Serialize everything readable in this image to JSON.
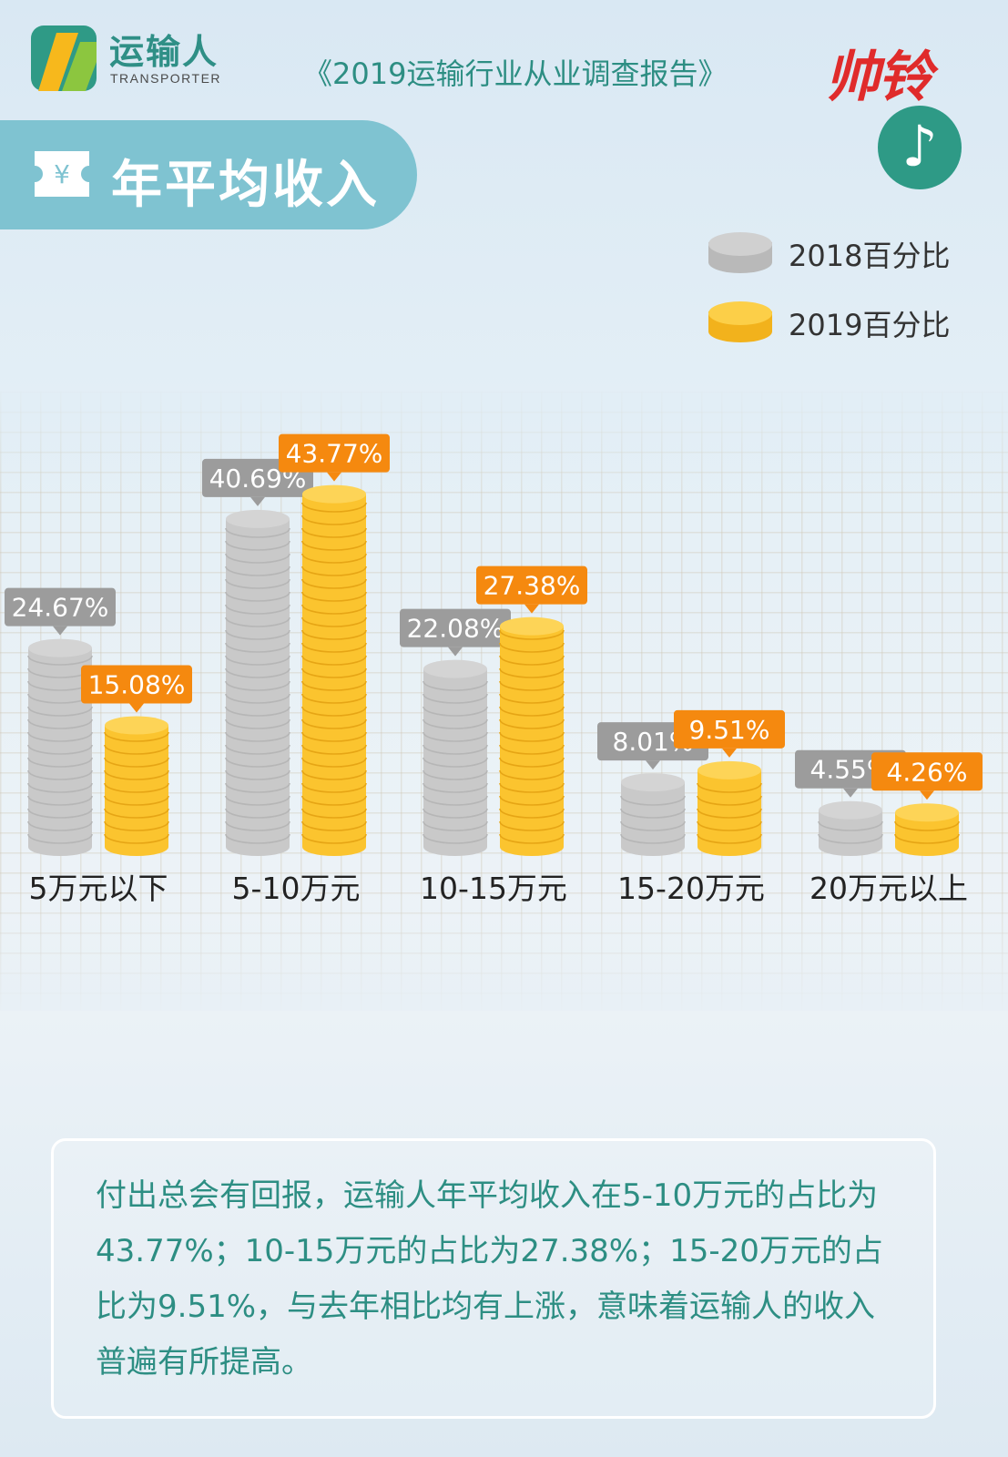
{
  "header": {
    "brand_cn": "运输人",
    "brand_en": "TRANSPORTER",
    "report_title": "《2019运输行业从业调查报告》",
    "partner_logo": "帅铃",
    "music_icon": "music-note-icon"
  },
  "section": {
    "title": "年平均收入",
    "icon": "yen-ticket-icon",
    "yen_symbol": "¥"
  },
  "legend": [
    {
      "label": "2018百分比",
      "color": "#c9c9c9"
    },
    {
      "label": "2019百分比",
      "color": "#fbc42f"
    }
  ],
  "colors": {
    "s2018_coin": "#c9c9c9",
    "s2018_label": "#9c9c9c",
    "s2019_coin": "#fbc42f",
    "s2019_label": "#f5890f",
    "accent": "#2d8e83"
  },
  "chart_data": {
    "type": "bar",
    "categories": [
      "5万元以下",
      "5-10万元",
      "10-15万元",
      "15-20万元",
      "20万元以上"
    ],
    "series": [
      {
        "name": "2018百分比",
        "values": [
          24.67,
          40.69,
          22.08,
          8.01,
          4.55
        ],
        "labels": [
          "24.67%",
          "40.69%",
          "22.08%",
          "8.01%",
          "4.55%"
        ]
      },
      {
        "name": "2019百分比",
        "values": [
          15.08,
          43.77,
          27.38,
          9.51,
          4.26
        ],
        "labels": [
          "15.08%",
          "43.77%",
          "27.38%",
          "9.51%",
          "4.26%"
        ]
      }
    ],
    "ylabel": "",
    "unit": "%"
  },
  "summary": {
    "text": "付出总会有回报，运输人年平均收入在5-10万元的占比为43.77%；10-15万元的占比为27.38%；15-20万元的占比为9.51%，与去年相比均有上涨，意味着运输人的收入普遍有所提高。"
  }
}
